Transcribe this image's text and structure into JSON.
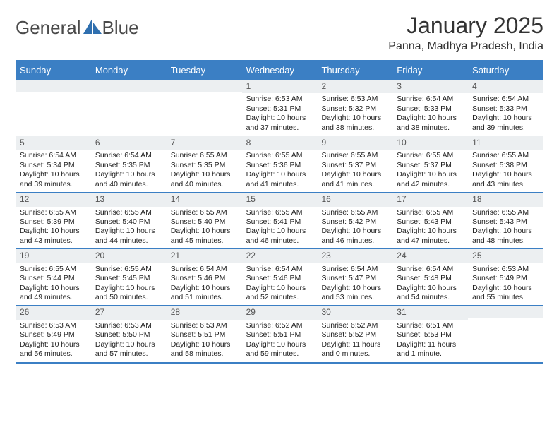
{
  "logo": {
    "text1": "General",
    "text2": "Blue",
    "shape_color": "#2f6faf"
  },
  "title": "January 2025",
  "location": "Panna, Madhya Pradesh, India",
  "colors": {
    "header_bg": "#3b7fc4",
    "header_text": "#ffffff",
    "row_divider": "#3b7fc4",
    "daynum_bg": "#eceff1",
    "text": "#333333"
  },
  "day_names": [
    "Sunday",
    "Monday",
    "Tuesday",
    "Wednesday",
    "Thursday",
    "Friday",
    "Saturday"
  ],
  "weeks": [
    [
      {
        "n": "",
        "sr": "",
        "ss": "",
        "dl": ""
      },
      {
        "n": "",
        "sr": "",
        "ss": "",
        "dl": ""
      },
      {
        "n": "",
        "sr": "",
        "ss": "",
        "dl": ""
      },
      {
        "n": "1",
        "sr": "Sunrise: 6:53 AM",
        "ss": "Sunset: 5:31 PM",
        "dl": "Daylight: 10 hours and 37 minutes."
      },
      {
        "n": "2",
        "sr": "Sunrise: 6:53 AM",
        "ss": "Sunset: 5:32 PM",
        "dl": "Daylight: 10 hours and 38 minutes."
      },
      {
        "n": "3",
        "sr": "Sunrise: 6:54 AM",
        "ss": "Sunset: 5:33 PM",
        "dl": "Daylight: 10 hours and 38 minutes."
      },
      {
        "n": "4",
        "sr": "Sunrise: 6:54 AM",
        "ss": "Sunset: 5:33 PM",
        "dl": "Daylight: 10 hours and 39 minutes."
      }
    ],
    [
      {
        "n": "5",
        "sr": "Sunrise: 6:54 AM",
        "ss": "Sunset: 5:34 PM",
        "dl": "Daylight: 10 hours and 39 minutes."
      },
      {
        "n": "6",
        "sr": "Sunrise: 6:54 AM",
        "ss": "Sunset: 5:35 PM",
        "dl": "Daylight: 10 hours and 40 minutes."
      },
      {
        "n": "7",
        "sr": "Sunrise: 6:55 AM",
        "ss": "Sunset: 5:35 PM",
        "dl": "Daylight: 10 hours and 40 minutes."
      },
      {
        "n": "8",
        "sr": "Sunrise: 6:55 AM",
        "ss": "Sunset: 5:36 PM",
        "dl": "Daylight: 10 hours and 41 minutes."
      },
      {
        "n": "9",
        "sr": "Sunrise: 6:55 AM",
        "ss": "Sunset: 5:37 PM",
        "dl": "Daylight: 10 hours and 41 minutes."
      },
      {
        "n": "10",
        "sr": "Sunrise: 6:55 AM",
        "ss": "Sunset: 5:37 PM",
        "dl": "Daylight: 10 hours and 42 minutes."
      },
      {
        "n": "11",
        "sr": "Sunrise: 6:55 AM",
        "ss": "Sunset: 5:38 PM",
        "dl": "Daylight: 10 hours and 43 minutes."
      }
    ],
    [
      {
        "n": "12",
        "sr": "Sunrise: 6:55 AM",
        "ss": "Sunset: 5:39 PM",
        "dl": "Daylight: 10 hours and 43 minutes."
      },
      {
        "n": "13",
        "sr": "Sunrise: 6:55 AM",
        "ss": "Sunset: 5:40 PM",
        "dl": "Daylight: 10 hours and 44 minutes."
      },
      {
        "n": "14",
        "sr": "Sunrise: 6:55 AM",
        "ss": "Sunset: 5:40 PM",
        "dl": "Daylight: 10 hours and 45 minutes."
      },
      {
        "n": "15",
        "sr": "Sunrise: 6:55 AM",
        "ss": "Sunset: 5:41 PM",
        "dl": "Daylight: 10 hours and 46 minutes."
      },
      {
        "n": "16",
        "sr": "Sunrise: 6:55 AM",
        "ss": "Sunset: 5:42 PM",
        "dl": "Daylight: 10 hours and 46 minutes."
      },
      {
        "n": "17",
        "sr": "Sunrise: 6:55 AM",
        "ss": "Sunset: 5:43 PM",
        "dl": "Daylight: 10 hours and 47 minutes."
      },
      {
        "n": "18",
        "sr": "Sunrise: 6:55 AM",
        "ss": "Sunset: 5:43 PM",
        "dl": "Daylight: 10 hours and 48 minutes."
      }
    ],
    [
      {
        "n": "19",
        "sr": "Sunrise: 6:55 AM",
        "ss": "Sunset: 5:44 PM",
        "dl": "Daylight: 10 hours and 49 minutes."
      },
      {
        "n": "20",
        "sr": "Sunrise: 6:55 AM",
        "ss": "Sunset: 5:45 PM",
        "dl": "Daylight: 10 hours and 50 minutes."
      },
      {
        "n": "21",
        "sr": "Sunrise: 6:54 AM",
        "ss": "Sunset: 5:46 PM",
        "dl": "Daylight: 10 hours and 51 minutes."
      },
      {
        "n": "22",
        "sr": "Sunrise: 6:54 AM",
        "ss": "Sunset: 5:46 PM",
        "dl": "Daylight: 10 hours and 52 minutes."
      },
      {
        "n": "23",
        "sr": "Sunrise: 6:54 AM",
        "ss": "Sunset: 5:47 PM",
        "dl": "Daylight: 10 hours and 53 minutes."
      },
      {
        "n": "24",
        "sr": "Sunrise: 6:54 AM",
        "ss": "Sunset: 5:48 PM",
        "dl": "Daylight: 10 hours and 54 minutes."
      },
      {
        "n": "25",
        "sr": "Sunrise: 6:53 AM",
        "ss": "Sunset: 5:49 PM",
        "dl": "Daylight: 10 hours and 55 minutes."
      }
    ],
    [
      {
        "n": "26",
        "sr": "Sunrise: 6:53 AM",
        "ss": "Sunset: 5:49 PM",
        "dl": "Daylight: 10 hours and 56 minutes."
      },
      {
        "n": "27",
        "sr": "Sunrise: 6:53 AM",
        "ss": "Sunset: 5:50 PM",
        "dl": "Daylight: 10 hours and 57 minutes."
      },
      {
        "n": "28",
        "sr": "Sunrise: 6:53 AM",
        "ss": "Sunset: 5:51 PM",
        "dl": "Daylight: 10 hours and 58 minutes."
      },
      {
        "n": "29",
        "sr": "Sunrise: 6:52 AM",
        "ss": "Sunset: 5:51 PM",
        "dl": "Daylight: 10 hours and 59 minutes."
      },
      {
        "n": "30",
        "sr": "Sunrise: 6:52 AM",
        "ss": "Sunset: 5:52 PM",
        "dl": "Daylight: 11 hours and 0 minutes."
      },
      {
        "n": "31",
        "sr": "Sunrise: 6:51 AM",
        "ss": "Sunset: 5:53 PM",
        "dl": "Daylight: 11 hours and 1 minute."
      },
      {
        "n": "",
        "sr": "",
        "ss": "",
        "dl": ""
      }
    ]
  ]
}
